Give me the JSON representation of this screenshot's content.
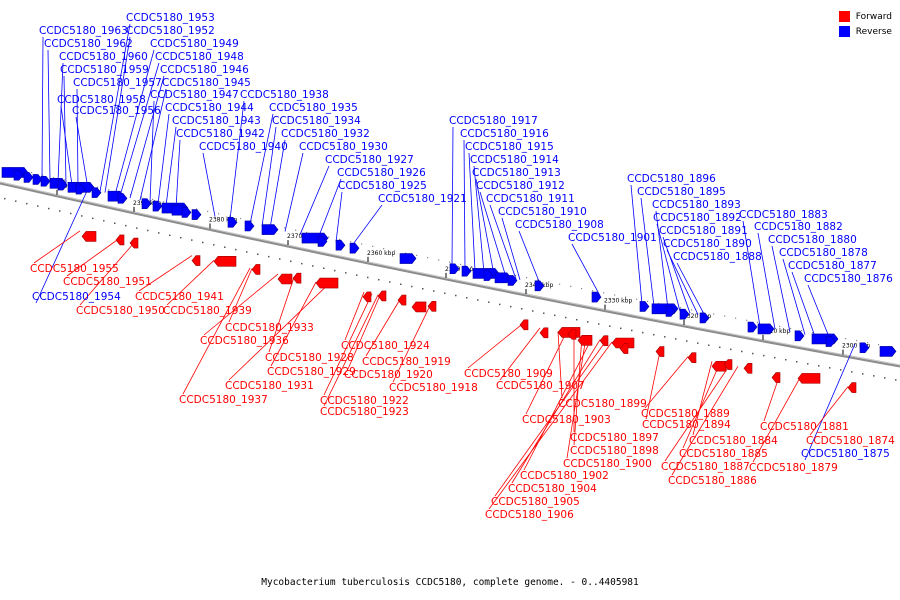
{
  "caption": "Mycobacterium tuberculosis CCDC5180, complete genome. - 0..4405981",
  "legend": [
    {
      "label": "Forward",
      "color": "#ff0000"
    },
    {
      "label": "Reverse",
      "color": "#0000ff"
    }
  ],
  "colors": {
    "forward": "#ff0000",
    "reverse": "#0000ff",
    "forward_dark": "#a00000",
    "reverse_dark": "#0000a0",
    "backbone": "#888888"
  },
  "ticks": [
    "2400 kbp",
    "2390 kbp",
    "2380 kbp",
    "2370 kbp",
    "2360 kbp",
    "2350 kbp",
    "2340 kbp",
    "2330 kbp",
    "2320 kbp",
    "2310 kbp",
    "2300 kbp"
  ],
  "reverse_genes": [
    "CCDC5180_1953",
    "CCDC5180_1963",
    "CCDC5180_1952",
    "CCDC5180_1962",
    "CCDC5180_1949",
    "CCDC5180_1960",
    "CCDC5180_1948",
    "CCDC5180_1959",
    "CCDC5180_1946",
    "CCDC5180_1957",
    "CCDC5180_1945",
    "CCDC5180_1947",
    "CCDC5180_1938",
    "CCDC5180_1958",
    "CCDC5180_1944",
    "CCDC5180_1935",
    "CCDC5180_1956",
    "CCDC5180_1943",
    "CCDC5180_1934",
    "CCDC5180_1942",
    "CCDC5180_1932",
    "CCDC5180_1940",
    "CCDC5180_1930",
    "CCDC5180_1927",
    "CCDC5180_1926",
    "CCDC5180_1925",
    "CCDC5180_1921",
    "CCDC5180_1917",
    "CCDC5180_1916",
    "CCDC5180_1915",
    "CCDC5180_1914",
    "CCDC5180_1913",
    "CCDC5180_1912",
    "CCDC5180_1911",
    "CCDC5180_1910",
    "CCDC5180_1908",
    "CCDC5180_1901",
    "CCDC5180_1896",
    "CCDC5180_1895",
    "CCDC5180_1893",
    "CCDC5180_1892",
    "CCDC5180_1891",
    "CCDC5180_1890",
    "CCDC5180_1888",
    "CCDC5180_1883",
    "CCDC5180_1882",
    "CCDC5180_1880",
    "CCDC5180_1878",
    "CCDC5180_1877",
    "CCDC5180_1876",
    "CCDC5180_1954",
    "CCDC5180_1875"
  ],
  "forward_genes": [
    "CCDC5180_1955",
    "CCDC5180_1951",
    "CCDC5180_1950",
    "CCDC5180_1941",
    "CCDC5180_1939",
    "CCDC5180_1933",
    "CCDC5180_1936",
    "CCDC5180_1928",
    "CCDC5180_1929",
    "CCDC5180_1931",
    "CCDC5180_1937",
    "CCDC5180_1924",
    "CCDC5180_1919",
    "CCDC5180_1920",
    "CCDC5180_1918",
    "CCDC5180_1922",
    "CCDC5180_1923",
    "CCDC5180_1909",
    "CCDC5180_1907",
    "CCDC5180_1899",
    "CCDC5180_1903",
    "CCDC5180_1894",
    "CCDC5180_1897",
    "CCDC5180_1898",
    "CCDC5180_1900",
    "CCDC5180_1902",
    "CCDC5180_1904",
    "CCDC5180_1905",
    "CCDC5180_1906",
    "CCDC5180_1889",
    "CCDC5180_1884",
    "CCDC5180_1885",
    "CCDC5180_1887",
    "CCDC5180_1886",
    "CCDC5180_1881",
    "CCDC5180_1879",
    "CCDC5180_1874"
  ]
}
